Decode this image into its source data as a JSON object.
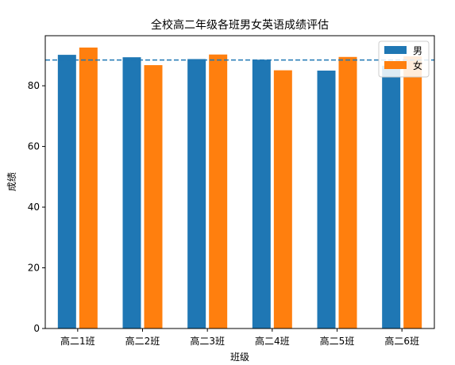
{
  "chart_data": {
    "type": "bar",
    "title": "全校高二年级各班男女英语成绩评估",
    "xlabel": "班级",
    "ylabel": "成绩",
    "categories": [
      "高二1班",
      "高二2班",
      "高二3班",
      "高二4班",
      "高二5班",
      "高二6班"
    ],
    "series": [
      {
        "name": "男",
        "color": "#1f77b4",
        "values": [
          90.2,
          89.4,
          88.8,
          88.6,
          85.0,
          86.6
        ]
      },
      {
        "name": "女",
        "color": "#ff7f0e",
        "values": [
          92.6,
          86.8,
          90.3,
          85.1,
          89.5,
          89.7
        ]
      }
    ],
    "ylim": [
      0,
      96.5
    ],
    "yticks": [
      0,
      20,
      40,
      60,
      80
    ],
    "reference_line": {
      "value": 88.5,
      "style": "dashed",
      "color": "#1f77b4"
    },
    "legend_position": "top-right",
    "grid": false
  }
}
